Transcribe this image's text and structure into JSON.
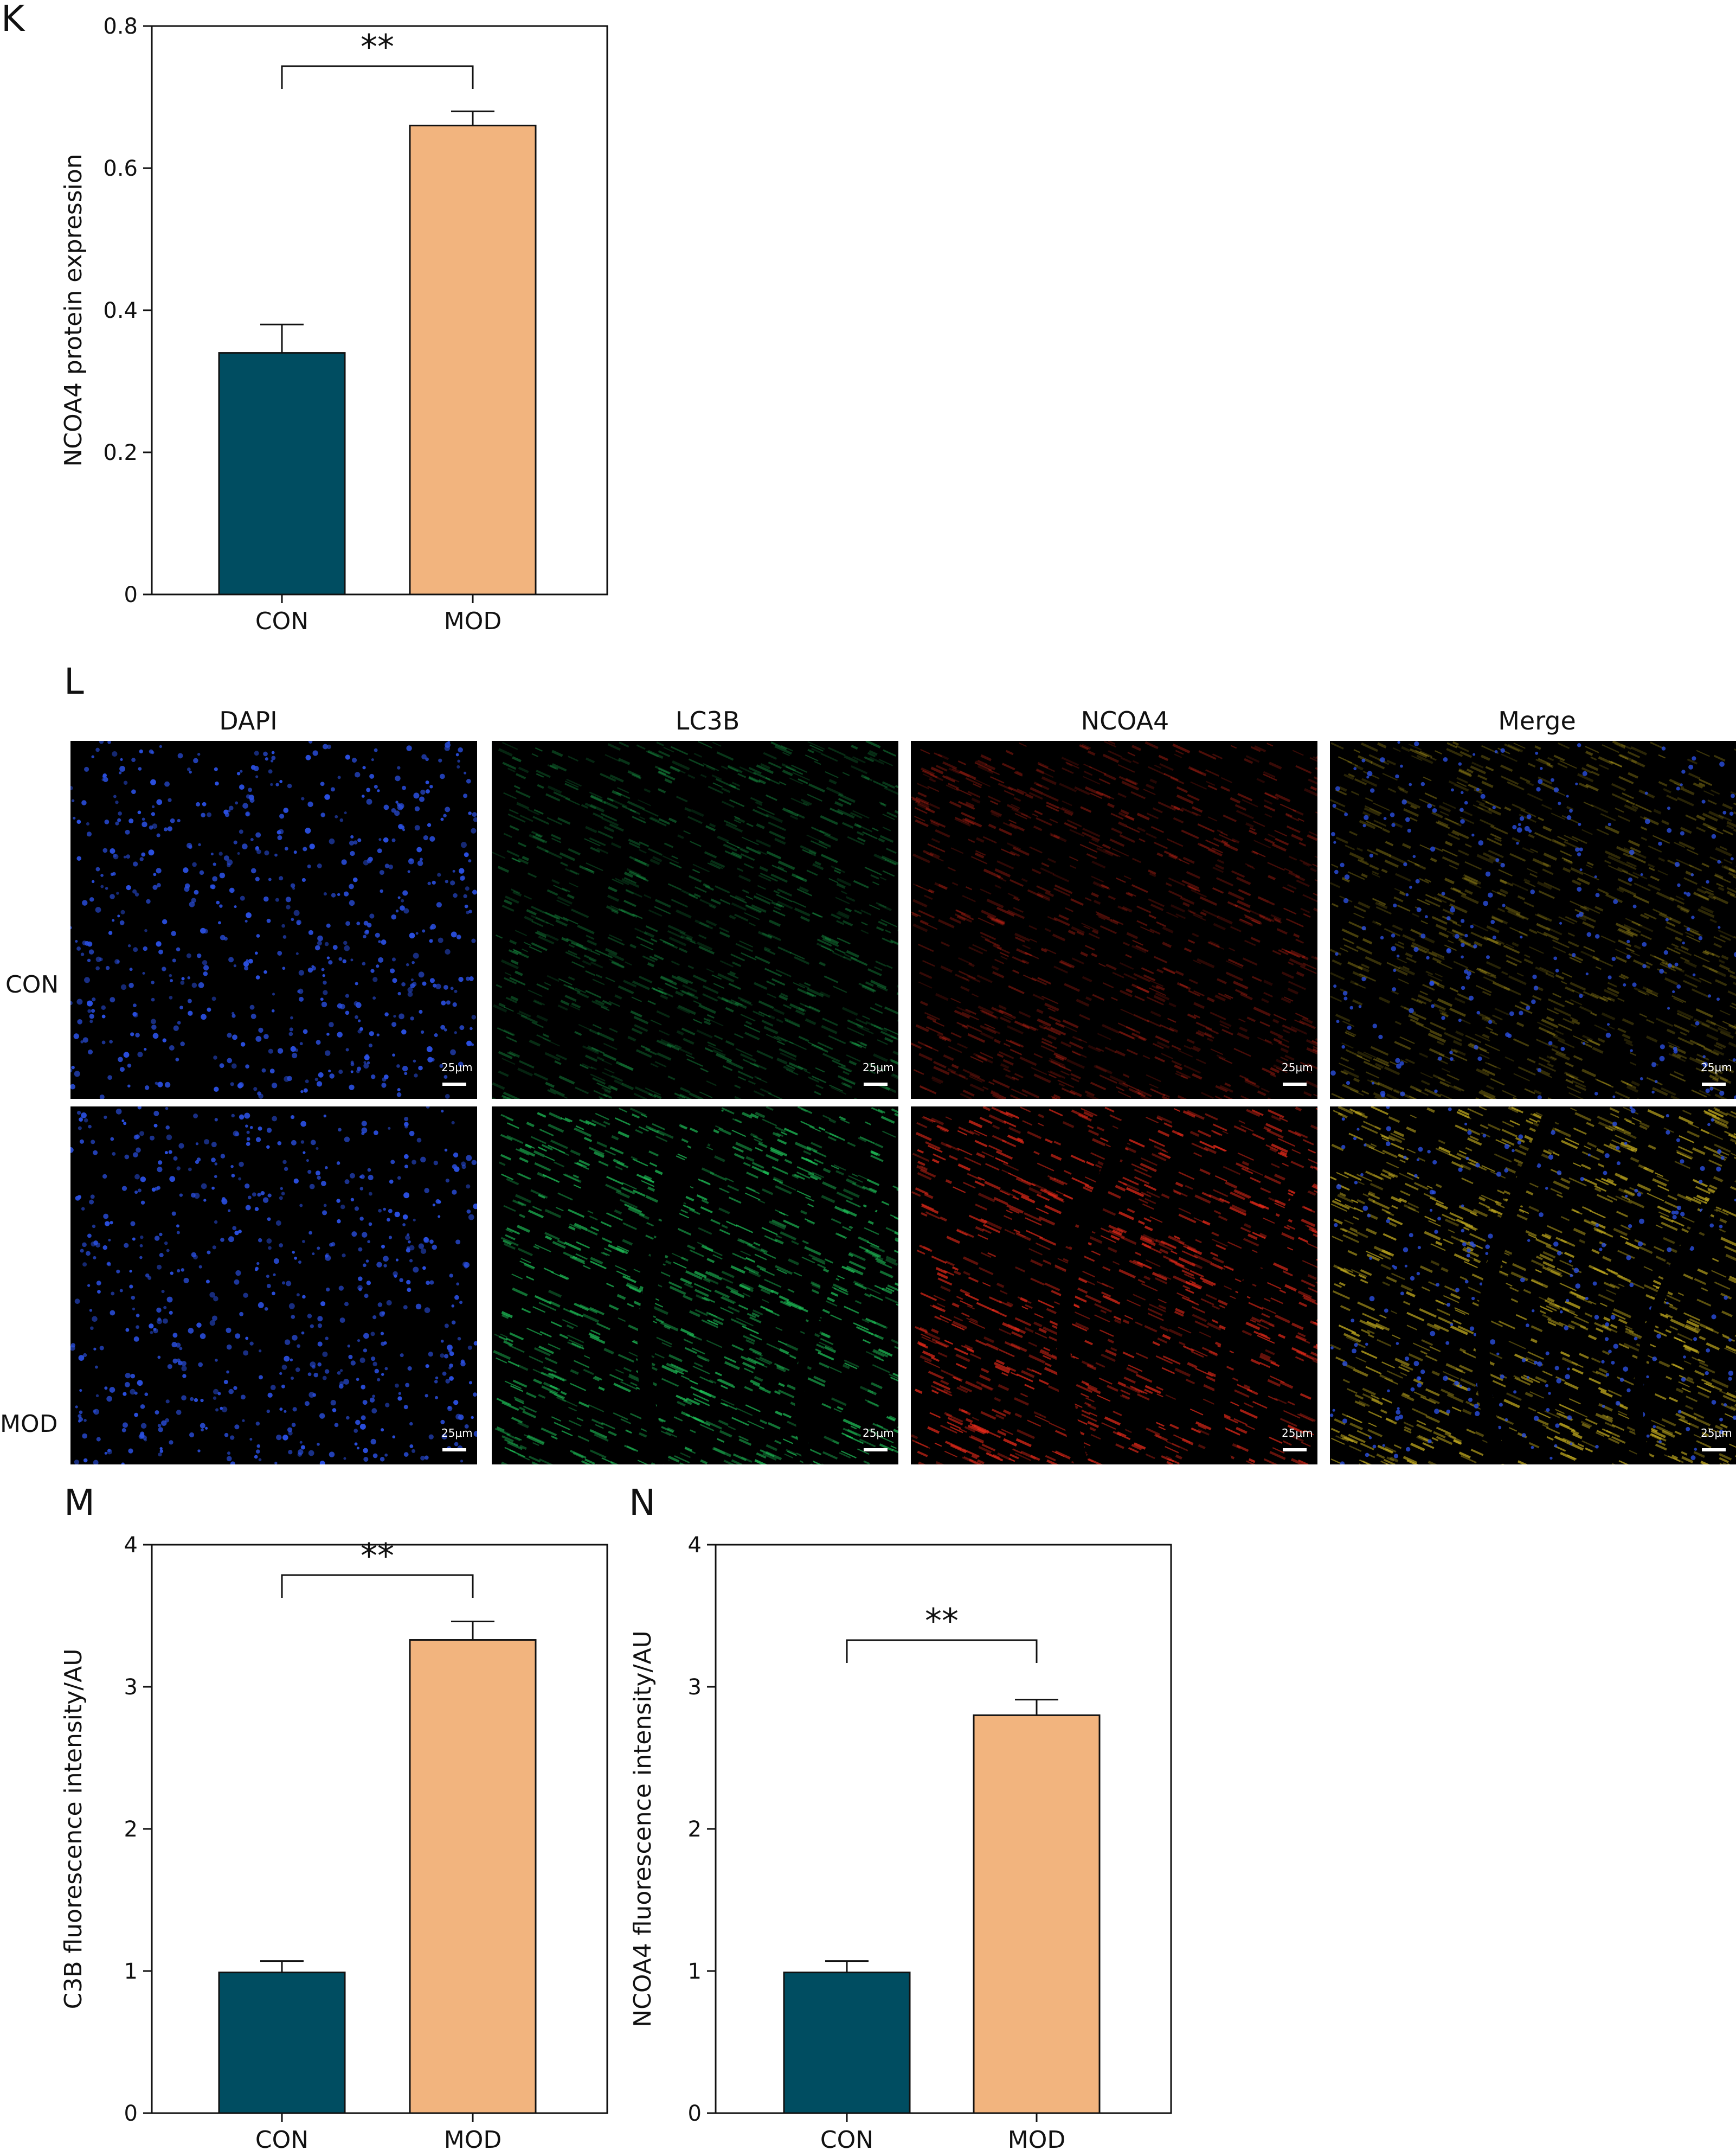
{
  "panels": {
    "k": "K",
    "l": "L",
    "m": "M",
    "n": "N"
  },
  "chart_data": [
    {
      "id": "K",
      "type": "bar",
      "categories": [
        "CON",
        "MOD"
      ],
      "values": [
        0.34,
        0.66
      ],
      "errors": [
        0.04,
        0.02
      ],
      "colors": [
        "#004D61",
        "#F2B47E"
      ],
      "ylabel": "NCOA4 protein expression",
      "ylim": [
        0,
        0.8
      ],
      "yticks": [
        0,
        0.2,
        0.4,
        0.6,
        0.8
      ],
      "ytick_labels": [
        "0",
        "0.2",
        "0.4",
        "0.6",
        "0.8"
      ],
      "significance": "**",
      "grid": false
    },
    {
      "id": "M",
      "type": "bar",
      "categories": [
        "CON",
        "MOD"
      ],
      "values": [
        0.99,
        3.33
      ],
      "errors": [
        0.08,
        0.13
      ],
      "colors": [
        "#004D61",
        "#F2B47E"
      ],
      "ylabel": "C3B fluorescence intensity/AU",
      "ylim": [
        0,
        4
      ],
      "yticks": [
        0,
        1,
        2,
        3,
        4
      ],
      "ytick_labels": [
        "0",
        "1",
        "2",
        "3",
        "4"
      ],
      "significance": "**",
      "grid": false
    },
    {
      "id": "N",
      "type": "bar",
      "categories": [
        "CON",
        "MOD"
      ],
      "values": [
        0.99,
        2.8
      ],
      "errors": [
        0.08,
        0.11
      ],
      "colors": [
        "#004D61",
        "#F2B47E"
      ],
      "ylabel": "NCOA4 fluorescence intensity/AU",
      "ylim": [
        0,
        4
      ],
      "yticks": [
        0,
        1,
        2,
        3,
        4
      ],
      "ytick_labels": [
        "0",
        "1",
        "2",
        "3",
        "4"
      ],
      "significance": "**",
      "grid": false
    }
  ],
  "micrographs": {
    "columns": [
      "DAPI",
      "LC3B",
      "NCOA4",
      "Merge"
    ],
    "rows": [
      "CON",
      "MOD"
    ],
    "scale_label": "25μm",
    "stain_colors": {
      "DAPI": "#2a4fe0",
      "LC3B": "#1fc45a",
      "NCOA4": "#e82a1a",
      "Merge": "#c8b020"
    }
  }
}
